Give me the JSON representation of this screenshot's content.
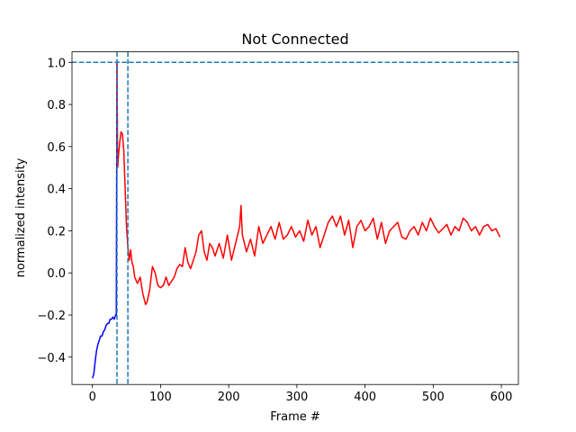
{
  "chart_data": {
    "type": "line",
    "title": "Not Connected",
    "x_label": "Frame #",
    "y_label": "normalized intensity",
    "xlim": [
      -30,
      625
    ],
    "ylim": [
      -0.53,
      1.05
    ],
    "xticks": [
      0,
      100,
      200,
      300,
      400,
      500,
      600
    ],
    "yticks": [
      {
        "value": -0.4,
        "label": "−0.4"
      },
      {
        "value": -0.2,
        "label": "−0.2"
      },
      {
        "value": 0,
        "label": "0.0"
      },
      0.2,
      0.4,
      0.6,
      0.8,
      {
        "value": 1,
        "label": "1.0"
      }
    ],
    "hlines": [
      1
    ],
    "vlines": [
      36,
      52
    ],
    "ref_color": "#1f77b4",
    "series": [
      {
        "color": "#0000ff",
        "x": [
          0,
          2,
          4,
          6,
          8,
          10,
          12,
          14,
          16,
          18,
          20,
          22,
          24,
          26,
          28,
          30,
          32,
          34,
          35,
          36
        ],
        "values": [
          -0.5,
          -0.48,
          -0.42,
          -0.37,
          -0.34,
          -0.32,
          -0.3,
          -0.3,
          -0.28,
          -0.27,
          -0.25,
          -0.24,
          -0.24,
          -0.22,
          -0.22,
          -0.21,
          -0.22,
          -0.2,
          -0.2,
          1.0
        ]
      },
      {
        "color": "#ff0000",
        "x": [
          36,
          37,
          38,
          40,
          42,
          44,
          46,
          48,
          50,
          52,
          54,
          56,
          58,
          60,
          62,
          66,
          70,
          74,
          78,
          80,
          84,
          88,
          92,
          96,
          100,
          104,
          108,
          112,
          116,
          120,
          124,
          128,
          132,
          136,
          140,
          144,
          148,
          152,
          156,
          160,
          164,
          168,
          172,
          176,
          180,
          186,
          192,
          198,
          204,
          210,
          216,
          218,
          220,
          226,
          232,
          238,
          244,
          250,
          256,
          262,
          268,
          274,
          280,
          286,
          292,
          298,
          304,
          310,
          316,
          322,
          328,
          334,
          340,
          346,
          352,
          358,
          364,
          370,
          376,
          382,
          388,
          394,
          400,
          406,
          412,
          418,
          424,
          430,
          436,
          442,
          448,
          454,
          460,
          466,
          472,
          478,
          484,
          490,
          496,
          502,
          508,
          514,
          520,
          526,
          532,
          538,
          544,
          550,
          556,
          562,
          568,
          574,
          580,
          586,
          592,
          598
        ],
        "values": [
          1.0,
          0.5,
          0.55,
          0.62,
          0.67,
          0.66,
          0.58,
          0.4,
          0.22,
          0.12,
          0.06,
          0.11,
          0.05,
          0.03,
          -0.02,
          -0.05,
          -0.02,
          -0.1,
          -0.15,
          -0.14,
          -0.08,
          0.03,
          0.0,
          -0.06,
          -0.07,
          -0.06,
          -0.02,
          -0.06,
          -0.04,
          -0.02,
          0.02,
          0.04,
          0.03,
          0.12,
          0.05,
          0.02,
          0.06,
          0.1,
          0.18,
          0.2,
          0.1,
          0.06,
          0.14,
          0.12,
          0.08,
          0.14,
          0.07,
          0.18,
          0.06,
          0.14,
          0.22,
          0.32,
          0.18,
          0.1,
          0.16,
          0.08,
          0.22,
          0.14,
          0.18,
          0.22,
          0.16,
          0.24,
          0.16,
          0.18,
          0.22,
          0.17,
          0.2,
          0.15,
          0.25,
          0.18,
          0.22,
          0.12,
          0.18,
          0.24,
          0.27,
          0.22,
          0.27,
          0.18,
          0.25,
          0.12,
          0.22,
          0.25,
          0.2,
          0.22,
          0.26,
          0.16,
          0.24,
          0.14,
          0.2,
          0.22,
          0.24,
          0.17,
          0.16,
          0.2,
          0.22,
          0.18,
          0.24,
          0.2,
          0.26,
          0.22,
          0.19,
          0.21,
          0.23,
          0.18,
          0.22,
          0.2,
          0.26,
          0.24,
          0.2,
          0.22,
          0.18,
          0.22,
          0.23,
          0.2,
          0.21,
          0.17
        ]
      }
    ]
  }
}
